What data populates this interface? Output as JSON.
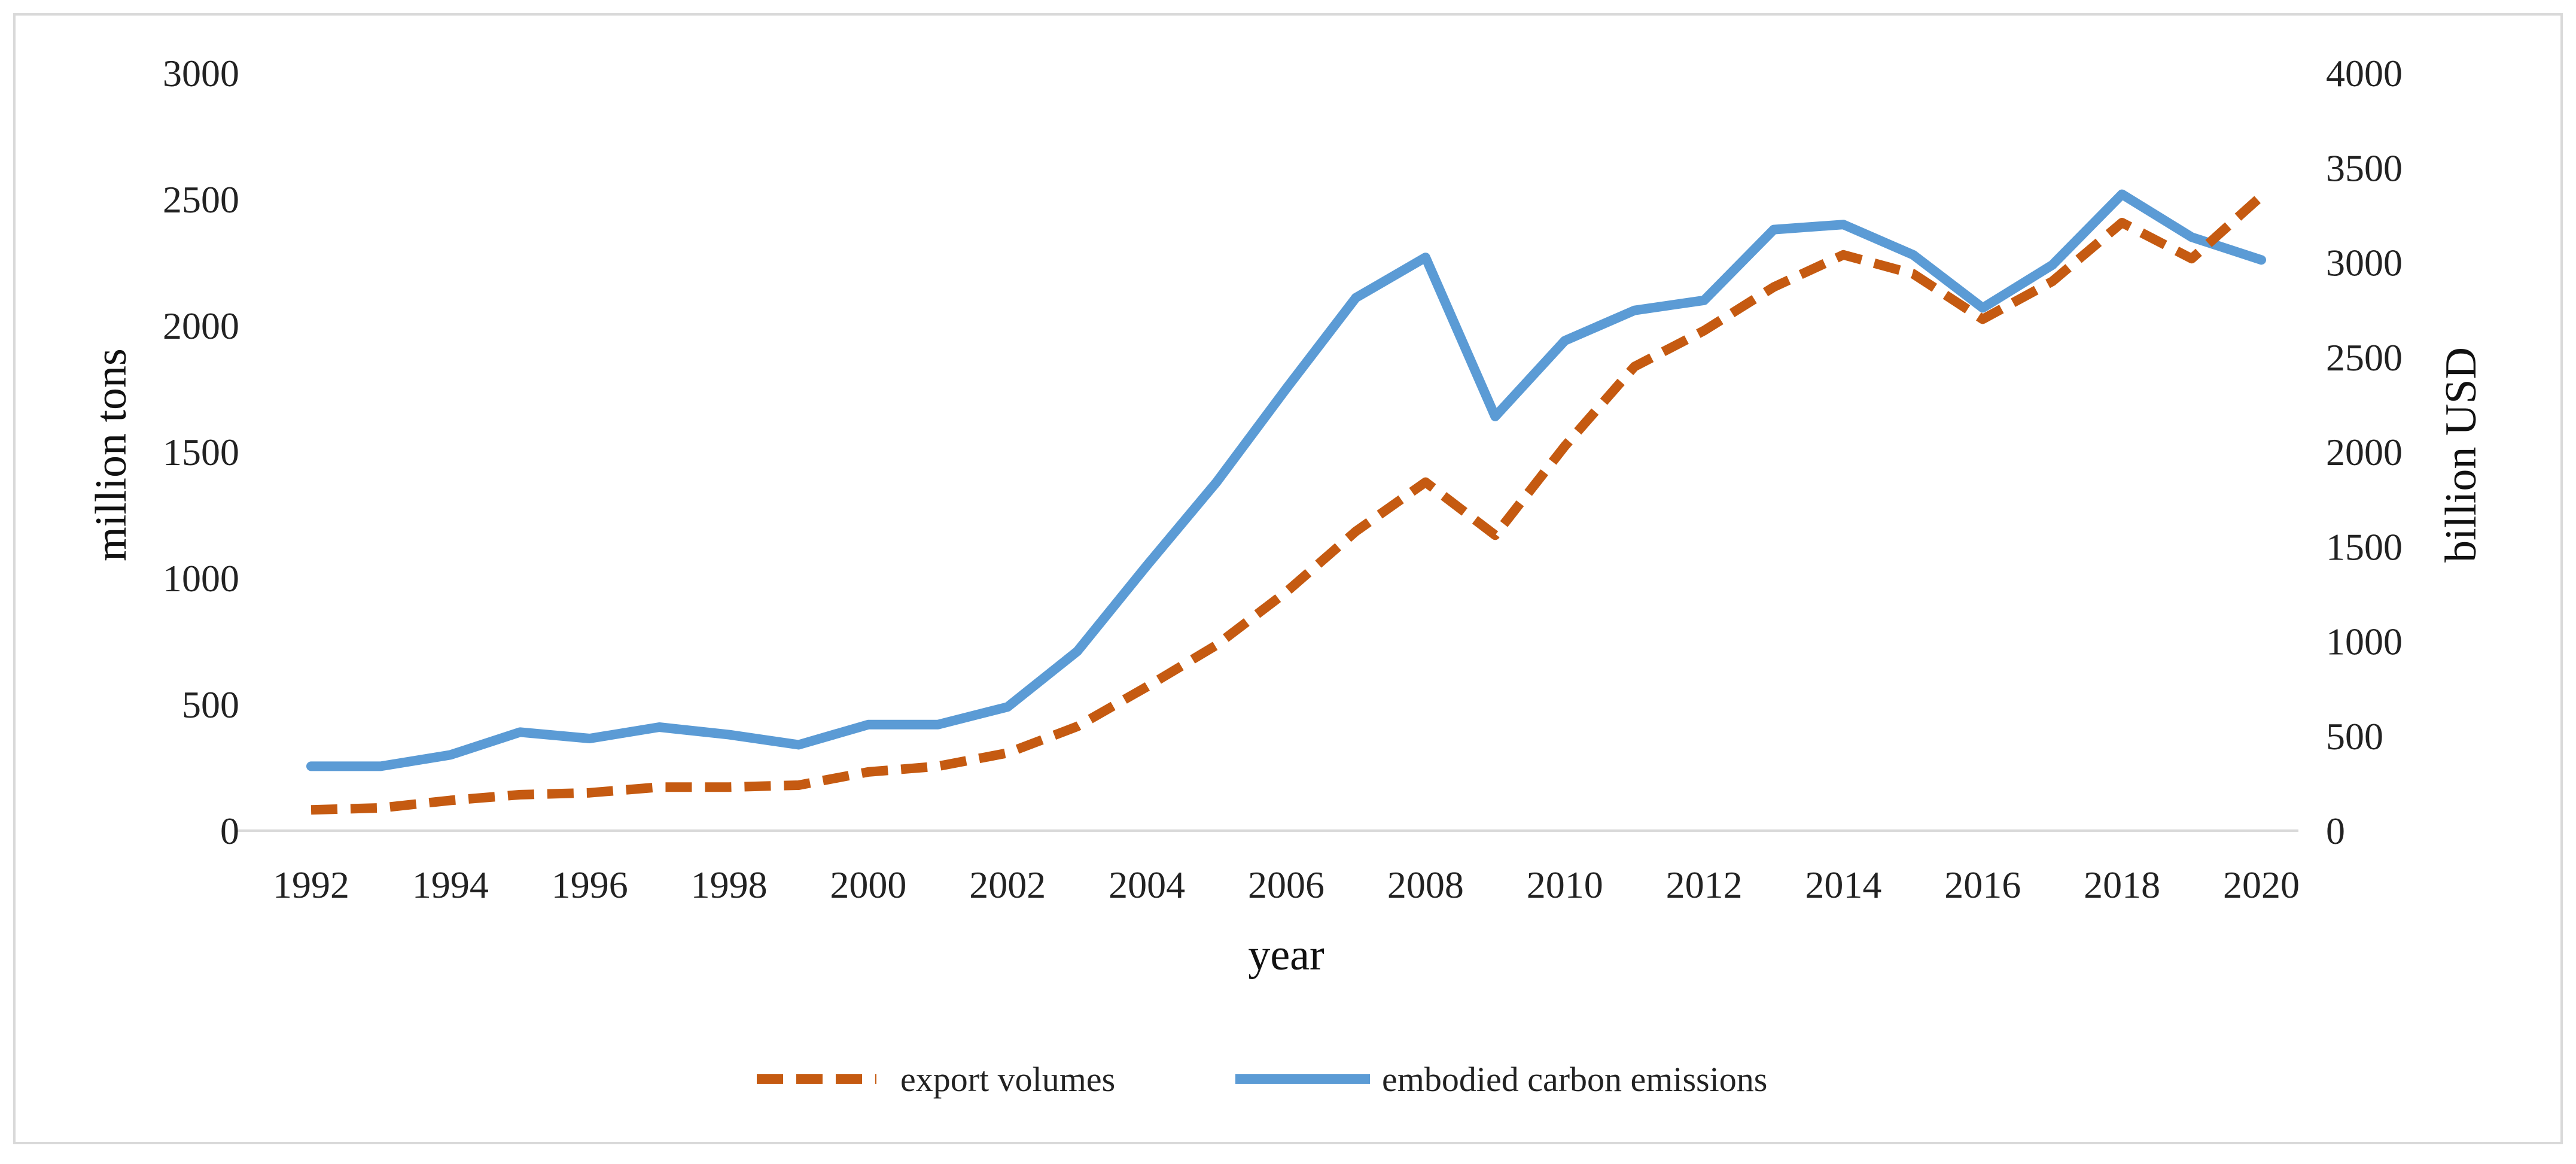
{
  "chart_data": {
    "type": "line",
    "title": "",
    "xlabel": "year",
    "ylabel_left": "million tons",
    "ylabel_right": "billion USD",
    "x": [
      1992,
      1993,
      1994,
      1995,
      1996,
      1997,
      1998,
      1999,
      2000,
      2001,
      2002,
      2003,
      2004,
      2005,
      2006,
      2007,
      2008,
      2009,
      2010,
      2011,
      2012,
      2013,
      2014,
      2015,
      2016,
      2017,
      2018,
      2019,
      2020
    ],
    "x_tick_labels": [
      "1992",
      "1994",
      "1996",
      "1998",
      "2000",
      "2002",
      "2004",
      "2006",
      "2008",
      "2010",
      "2012",
      "2014",
      "2016",
      "2018",
      "2020"
    ],
    "ylim_left": [
      0,
      3000
    ],
    "yticks_left": [
      "0",
      "500",
      "1000",
      "1500",
      "2000",
      "2500",
      "3000"
    ],
    "ylim_right": [
      0,
      4000
    ],
    "yticks_right": [
      "0",
      "500",
      "1000",
      "1500",
      "2000",
      "2500",
      "3000",
      "3500",
      "4000"
    ],
    "grid": false,
    "legend_position": "bottom",
    "series": [
      {
        "name": "export volumes",
        "axis": "right",
        "style": "dashed",
        "color": "#C55A11",
        "values": [
          110,
          120,
          160,
          190,
          200,
          230,
          230,
          240,
          310,
          340,
          410,
          550,
          760,
          980,
          1260,
          1580,
          1840,
          1560,
          2030,
          2450,
          2640,
          2870,
          3040,
          2940,
          2700,
          2900,
          3210,
          3020,
          3350
        ]
      },
      {
        "name": "embodied carbon emissions",
        "axis": "left",
        "style": "solid",
        "color": "#5B9BD5",
        "values": [
          255,
          255,
          300,
          390,
          365,
          410,
          380,
          340,
          420,
          420,
          490,
          710,
          1050,
          1380,
          1750,
          2110,
          2270,
          1640,
          1940,
          2060,
          2100,
          2380,
          2400,
          2280,
          2070,
          2240,
          2520,
          2350,
          2260
        ]
      }
    ]
  }
}
